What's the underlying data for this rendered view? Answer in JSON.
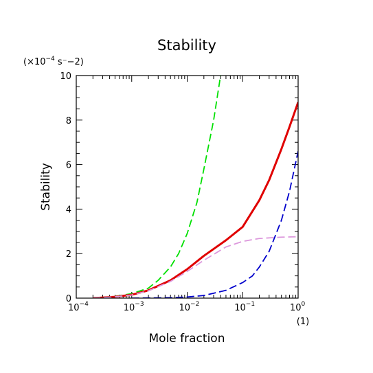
{
  "chart_data": {
    "type": "line",
    "title": "Stability",
    "xlabel": "Mole fraction",
    "ylabel": "Stability",
    "x_unit": "(1)",
    "y_unit_prefix": "(×10",
    "y_unit_exp": "−4",
    "y_unit_suffix": " s⁻−2)",
    "x_scale": "log",
    "xlim": [
      0.0001,
      1
    ],
    "ylim": [
      0,
      10
    ],
    "x_ticks": [
      {
        "value": 0.0001,
        "base": "10",
        "exp": "−4"
      },
      {
        "value": 0.001,
        "base": "10",
        "exp": "−3"
      },
      {
        "value": 0.01,
        "base": "10",
        "exp": "−2"
      },
      {
        "value": 0.1,
        "base": "10",
        "exp": "−1"
      },
      {
        "value": 1,
        "base": "10",
        "exp": "0"
      }
    ],
    "y_ticks": [
      0,
      2,
      4,
      6,
      8,
      10
    ],
    "grid": false,
    "series": [
      {
        "color": "#00e000",
        "style": "dashed",
        "x": [
          0.0002,
          0.0005,
          0.001,
          0.002,
          0.003,
          0.005,
          0.007,
          0.01,
          0.015,
          0.02,
          0.03,
          0.04
        ],
        "y": [
          0.0,
          0.08,
          0.2,
          0.45,
          0.8,
          1.4,
          2.0,
          2.9,
          4.3,
          5.8,
          8.0,
          10.0
        ]
      },
      {
        "color": "#e00000",
        "style": "solid",
        "x": [
          0.0002,
          0.0005,
          0.001,
          0.002,
          0.005,
          0.01,
          0.02,
          0.05,
          0.1,
          0.2,
          0.3,
          0.5,
          0.7,
          1.0
        ],
        "y": [
          0.0,
          0.06,
          0.15,
          0.35,
          0.8,
          1.3,
          1.9,
          2.6,
          3.2,
          4.4,
          5.3,
          6.7,
          7.7,
          8.8
        ]
      },
      {
        "color": "#dd99dd",
        "style": "dashed",
        "x": [
          0.0002,
          0.0005,
          0.001,
          0.002,
          0.005,
          0.01,
          0.02,
          0.05,
          0.1,
          0.2,
          0.5,
          1.0
        ],
        "y": [
          0.0,
          0.06,
          0.14,
          0.33,
          0.75,
          1.2,
          1.7,
          2.3,
          2.55,
          2.68,
          2.74,
          2.76
        ]
      },
      {
        "color": "#0000cc",
        "style": "dashed",
        "x": [
          0.001,
          0.005,
          0.01,
          0.02,
          0.05,
          0.1,
          0.15,
          0.2,
          0.3,
          0.5,
          0.7,
          1.0
        ],
        "y": [
          0.0,
          0.02,
          0.05,
          0.12,
          0.35,
          0.7,
          1.0,
          1.4,
          2.1,
          3.5,
          4.8,
          6.6
        ]
      }
    ]
  }
}
